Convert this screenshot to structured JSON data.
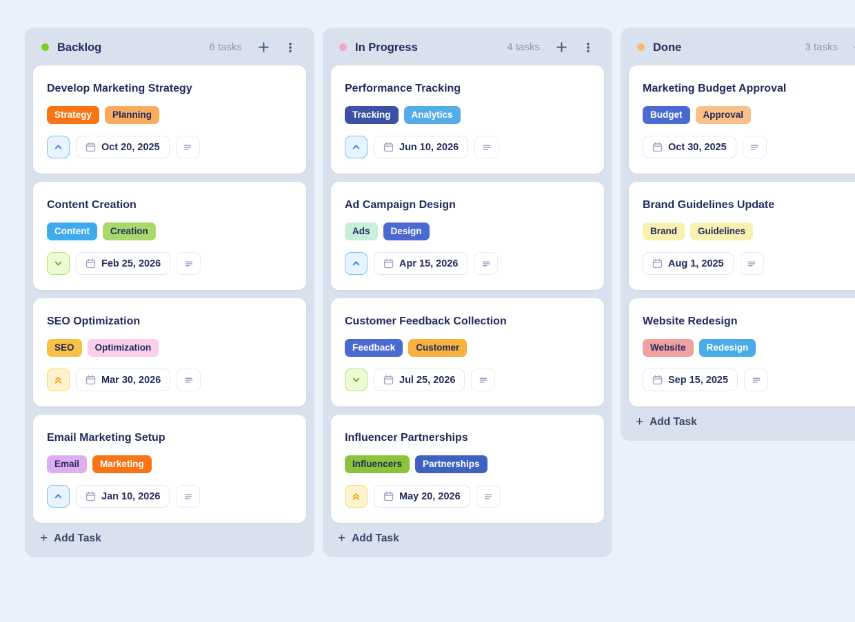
{
  "ui": {
    "add_task_label": "Add Task",
    "plus_glyph": "+",
    "colors": {
      "page_bg": "#e9f1fa",
      "column_bg": "#d9e1ee",
      "card_bg": "#ffffff",
      "title_text": "#232a5c",
      "count_text": "#8d97b0",
      "header_icon": "#3d4a73",
      "chip_border": "#e3e7f3",
      "chip_icon": "#9aa3c0"
    },
    "priority_styles": {
      "high": {
        "bg": "#e7f3fe",
        "border": "#7cc0f4",
        "color": "#2e7fe8",
        "icon": "chevron-up-icon"
      },
      "low": {
        "bg": "#eefad6",
        "border": "#b3e45f",
        "color": "#6fae17",
        "icon": "chevron-down-icon"
      },
      "urgent": {
        "bg": "#fdf3d1",
        "border": "#f7d469",
        "color": "#f5a30b",
        "icon": "double-chevron-up-icon"
      }
    }
  },
  "columns": [
    {
      "name": "Backlog",
      "count": "6 tasks",
      "dot_color": "#7ccf1f",
      "tasks": [
        {
          "title": "Develop Marketing Strategy",
          "priority": "high",
          "due": "Oct 20, 2025",
          "tags": [
            {
              "label": "Strategy",
              "bg": "#f97415",
              "fg": "#ffffff"
            },
            {
              "label": "Planning",
              "bg": "#fbab60",
              "fg": "#232a5c"
            }
          ]
        },
        {
          "title": "Content Creation",
          "priority": "low",
          "due": "Feb 25, 2026",
          "tags": [
            {
              "label": "Content",
              "bg": "#3eaaf0",
              "fg": "#ffffff"
            },
            {
              "label": "Creation",
              "bg": "#a9d96b",
              "fg": "#232a5c"
            }
          ]
        },
        {
          "title": "SEO Optimization",
          "priority": "urgent",
          "due": "Mar 30, 2026",
          "tags": [
            {
              "label": "SEO",
              "bg": "#f8c045",
              "fg": "#232a5c"
            },
            {
              "label": "Optimization",
              "bg": "#f9cfe9",
              "fg": "#232a5c"
            }
          ]
        },
        {
          "title": "Email Marketing Setup",
          "priority": "high",
          "due": "Jan 10, 2026",
          "tags": [
            {
              "label": "Email",
              "bg": "#ddaff2",
              "fg": "#232a5c"
            },
            {
              "label": "Marketing",
              "bg": "#f97415",
              "fg": "#ffffff"
            }
          ]
        }
      ]
    },
    {
      "name": "In Progress",
      "count": "4 tasks",
      "dot_color": "#f3a7c3",
      "tasks": [
        {
          "title": "Performance Tracking",
          "priority": "high",
          "due": "Jun 10, 2026",
          "tags": [
            {
              "label": "Tracking",
              "bg": "#3c50a5",
              "fg": "#ffffff"
            },
            {
              "label": "Analytics",
              "bg": "#55aceb",
              "fg": "#ffffff"
            }
          ]
        },
        {
          "title": "Ad Campaign Design",
          "priority": "high",
          "due": "Apr 15, 2026",
          "tags": [
            {
              "label": "Ads",
              "bg": "#c6eedb",
              "fg": "#232a5c"
            },
            {
              "label": "Design",
              "bg": "#4a6ad2",
              "fg": "#ffffff"
            }
          ]
        },
        {
          "title": "Customer Feedback Collection",
          "priority": "low",
          "due": "Jul 25, 2026",
          "tags": [
            {
              "label": "Feedback",
              "bg": "#4a6ad2",
              "fg": "#ffffff"
            },
            {
              "label": "Customer",
              "bg": "#f8b13c",
              "fg": "#232a5c"
            }
          ]
        },
        {
          "title": "Influencer Partnerships",
          "priority": "urgent",
          "due": "May 20, 2026",
          "tags": [
            {
              "label": "Influencers",
              "bg": "#8bc43a",
              "fg": "#232a5c"
            },
            {
              "label": "Partnerships",
              "bg": "#3f62c0",
              "fg": "#ffffff"
            }
          ]
        }
      ]
    },
    {
      "name": "Done",
      "count": "3 tasks",
      "dot_color": "#f5b971",
      "tasks": [
        {
          "title": "Marketing Budget Approval",
          "priority": null,
          "due": "Oct 30, 2025",
          "tags": [
            {
              "label": "Budget",
              "bg": "#4a6ad2",
              "fg": "#ffffff"
            },
            {
              "label": "Approval",
              "bg": "#fac088",
              "fg": "#232a5c"
            }
          ]
        },
        {
          "title": "Brand Guidelines Update",
          "priority": null,
          "due": "Aug 1, 2025",
          "tags": [
            {
              "label": "Brand",
              "bg": "#faf0b0",
              "fg": "#232a5c"
            },
            {
              "label": "Guidelines",
              "bg": "#faf0b0",
              "fg": "#232a5c"
            }
          ]
        },
        {
          "title": "Website Redesign",
          "priority": null,
          "due": "Sep 15, 2025",
          "tags": [
            {
              "label": "Website",
              "bg": "#f0a1a1",
              "fg": "#232a5c"
            },
            {
              "label": "Redesign",
              "bg": "#47ace8",
              "fg": "#ffffff"
            }
          ]
        }
      ]
    }
  ]
}
